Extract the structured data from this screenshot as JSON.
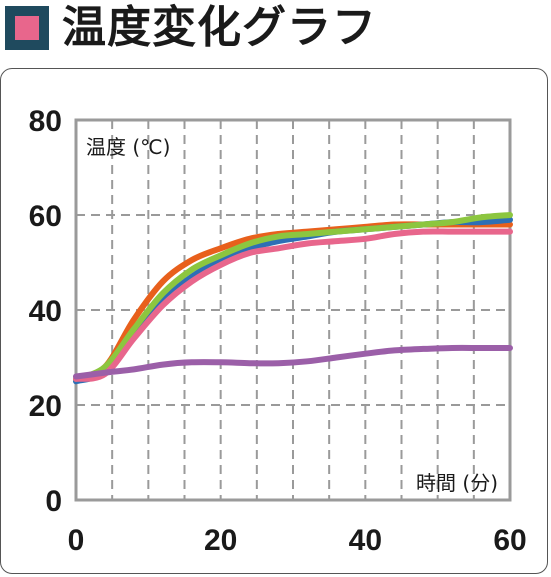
{
  "header": {
    "title": "温度変化グラフ",
    "marker_color": "#1f4a5e",
    "marker_inner_color": "#e8668c"
  },
  "chart_data": {
    "type": "line",
    "title": "温度変化グラフ",
    "ylabel": "温度 (℃)",
    "xlabel": "時間 (分)",
    "xlim": [
      0,
      60
    ],
    "ylim": [
      0,
      80
    ],
    "x_ticks": [
      0,
      20,
      40,
      60
    ],
    "y_ticks": [
      0,
      20,
      40,
      60,
      80
    ],
    "grid": true,
    "series": [
      {
        "color": "#e8601c",
        "x": [
          0,
          4,
          8,
          12,
          16,
          20,
          24,
          28,
          32,
          36,
          40,
          44,
          48,
          52,
          56,
          60
        ],
        "y": [
          25.5,
          28,
          38,
          46,
          50.5,
          53,
          55,
          56,
          56.5,
          57,
          57.5,
          58,
          58,
          58,
          58,
          58
        ]
      },
      {
        "color": "#2e6fb5",
        "x": [
          0,
          4,
          8,
          12,
          16,
          20,
          24,
          28,
          32,
          36,
          40,
          44,
          48,
          52,
          56,
          60
        ],
        "y": [
          25,
          27,
          35,
          42,
          47,
          50.5,
          53,
          54.5,
          55.5,
          56.5,
          57,
          57.5,
          58,
          58.5,
          58.5,
          59
        ]
      },
      {
        "color": "#8cc63f",
        "x": [
          0,
          4,
          8,
          12,
          16,
          20,
          24,
          28,
          32,
          36,
          40,
          44,
          48,
          52,
          56,
          60
        ],
        "y": [
          25.5,
          28,
          36,
          43.5,
          48.5,
          51.5,
          54,
          55.5,
          56,
          56.5,
          57,
          57.5,
          58,
          58.5,
          59.5,
          60
        ]
      },
      {
        "color": "#e8668c",
        "x": [
          0,
          4,
          8,
          12,
          16,
          20,
          24,
          28,
          32,
          36,
          40,
          44,
          48,
          52,
          56,
          60
        ],
        "y": [
          25.5,
          26.5,
          34,
          41,
          46,
          49.5,
          52,
          53,
          54,
          54.5,
          55,
          56,
          56.5,
          56.5,
          56.5,
          56.5
        ]
      },
      {
        "color": "#9b5fa8",
        "x": [
          0,
          4,
          8,
          12,
          16,
          20,
          24,
          28,
          32,
          36,
          40,
          44,
          48,
          52,
          56,
          60
        ],
        "y": [
          26,
          26.8,
          27.5,
          28.5,
          29,
          29,
          28.8,
          28.8,
          29.2,
          30,
          30.8,
          31.5,
          31.8,
          32,
          32,
          32
        ]
      }
    ]
  }
}
